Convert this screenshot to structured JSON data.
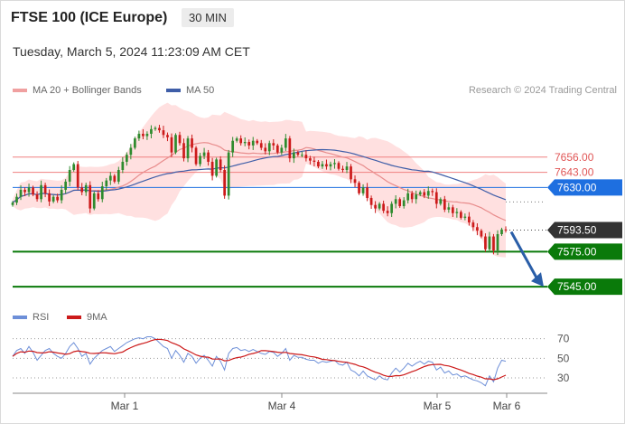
{
  "header": {
    "title": "FTSE 100 (ICE Europe)",
    "timeframe": "30 MIN",
    "datetime": "Tuesday, March 5, 2024 11:23:09 AM CET"
  },
  "legend": {
    "ma20": "MA 20 + Bollinger Bands",
    "ma50": "MA 50",
    "rsi": "RSI",
    "ma9": "9MA",
    "credit": "Research © 2024 Trading Central"
  },
  "colors": {
    "bull": "#2e8b2e",
    "bear": "#cc1a1a",
    "ma20": "#e88c8c",
    "band": "#ffd6d6",
    "ma50": "#3f5ea8",
    "support": "#0a7a0a",
    "resistance": "#f08080",
    "current": "#333333",
    "pivot": "#1e6fe0",
    "arrow": "#2a5ea8",
    "rsi": "#6d8fd8",
    "rsi_ma": "#cc1a1a"
  },
  "chart_data": {
    "type": "candlestick",
    "price_axis": {
      "min": 7535,
      "max": 7700
    },
    "x_tick_labels": [
      "Mar 1",
      "Mar 4",
      "Mar 5",
      "Mar 6"
    ],
    "levels": [
      {
        "value": 7656.0,
        "label": "7656.00",
        "kind": "resistance"
      },
      {
        "value": 7643.0,
        "label": "7643.00",
        "kind": "resistance"
      },
      {
        "value": 7630.0,
        "label": "7630.00",
        "kind": "pivot"
      },
      {
        "value": 7593.5,
        "label": "7593.50",
        "kind": "current"
      },
      {
        "value": 7575.0,
        "label": "7575.00",
        "kind": "support"
      },
      {
        "value": 7545.0,
        "label": "7545.00",
        "kind": "support"
      }
    ],
    "forecast_arrow": {
      "from": 7593.5,
      "to": 7545.0
    },
    "close_series": [
      7617,
      7622,
      7628,
      7626,
      7630,
      7624,
      7620,
      7632,
      7625,
      7618,
      7622,
      7619,
      7628,
      7635,
      7645,
      7650,
      7630,
      7626,
      7632,
      7612,
      7625,
      7620,
      7631,
      7636,
      7640,
      7635,
      7645,
      7652,
      7658,
      7664,
      7672,
      7676,
      7674,
      7676,
      7680,
      7681,
      7679,
      7675,
      7673,
      7660,
      7675,
      7668,
      7655,
      7672,
      7664,
      7650,
      7657,
      7660,
      7652,
      7640,
      7654,
      7645,
      7623,
      7660,
      7670,
      7672,
      7668,
      7669,
      7666,
      7670,
      7668,
      7664,
      7661,
      7668,
      7666,
      7660,
      7664,
      7672,
      7655,
      7660,
      7658,
      7658,
      7655,
      7653,
      7652,
      7648,
      7650,
      7648,
      7650,
      7651,
      7646,
      7645,
      7648,
      7637,
      7634,
      7625,
      7630,
      7621,
      7615,
      7612,
      7616,
      7610,
      7608,
      7616,
      7620,
      7614,
      7619,
      7625,
      7620,
      7624,
      7626,
      7623,
      7627,
      7626,
      7616,
      7620,
      7611,
      7613,
      7608,
      7609,
      7604,
      7605,
      7600,
      7596,
      7593,
      7588,
      7577,
      7588,
      7576,
      7590,
      7594,
      7593.5
    ],
    "rsi": {
      "values": [
        52,
        58,
        60,
        55,
        62,
        56,
        48,
        53,
        58,
        60,
        55,
        52,
        50,
        55,
        62,
        66,
        60,
        52,
        55,
        44,
        50,
        54,
        58,
        60,
        62,
        57,
        60,
        63,
        66,
        68,
        70,
        71,
        70,
        72,
        72,
        70,
        66,
        62,
        60,
        50,
        58,
        53,
        46,
        55,
        52,
        45,
        50,
        53,
        48,
        42,
        52,
        47,
        38,
        55,
        60,
        61,
        58,
        59,
        57,
        59,
        57,
        55,
        54,
        57,
        56,
        52,
        55,
        60,
        48,
        53,
        51,
        51,
        49,
        48,
        48,
        45,
        47,
        46,
        47,
        48,
        44,
        43,
        46,
        38,
        36,
        32,
        37,
        32,
        30,
        28,
        32,
        29,
        28,
        35,
        40,
        36,
        40,
        45,
        42,
        45,
        47,
        44,
        47,
        46,
        38,
        41,
        35,
        37,
        33,
        34,
        31,
        32,
        30,
        28,
        27,
        25,
        22,
        32,
        26,
        40,
        48,
        47
      ],
      "ticks": [
        70,
        50,
        30
      ],
      "range": [
        18,
        78
      ]
    }
  }
}
